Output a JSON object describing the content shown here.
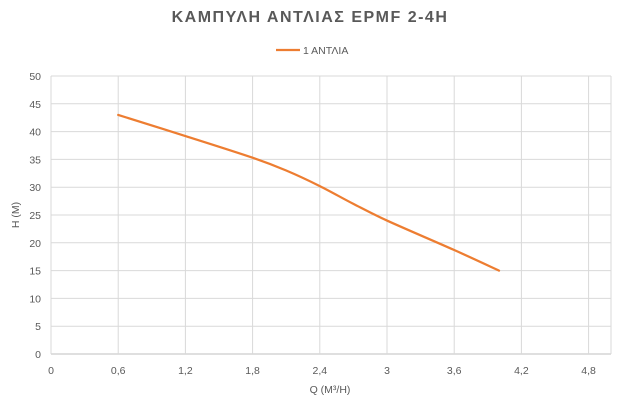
{
  "chart_data": {
    "type": "line",
    "title": "ΚΑΜΠΥΛΗ ΑΝΤΛΙΑΣ ΕΡΜF 2-4H",
    "xlabel": "Q (M³/H)",
    "ylabel": "H (M)",
    "xlim": [
      0,
      5.0
    ],
    "ylim": [
      0,
      50
    ],
    "x_ticks": [
      0,
      0.6,
      1.2,
      1.8,
      2.4,
      3,
      3.6,
      4.2,
      4.8
    ],
    "x_tick_labels": [
      "0",
      "0,6",
      "1,2",
      "1,8",
      "2,4",
      "3",
      "3,6",
      "4,2",
      "4,8"
    ],
    "y_ticks": [
      0,
      5,
      10,
      15,
      20,
      25,
      30,
      35,
      40,
      45,
      50
    ],
    "y_tick_labels": [
      "0",
      "5",
      "10",
      "15",
      "20",
      "25",
      "30",
      "35",
      "40",
      "45",
      "50"
    ],
    "grid": true,
    "legend_position": "top-center",
    "series": [
      {
        "name": "1 ΑΝΤΛΙΑ",
        "color": "#ed7d31",
        "x": [
          0.6,
          1.2,
          1.8,
          2.1,
          2.4,
          2.7,
          3.0,
          3.6,
          4.0
        ],
        "y": [
          43,
          39.2,
          35.3,
          33.0,
          30.2,
          27.0,
          24.0,
          18.7,
          15.0
        ]
      }
    ]
  }
}
